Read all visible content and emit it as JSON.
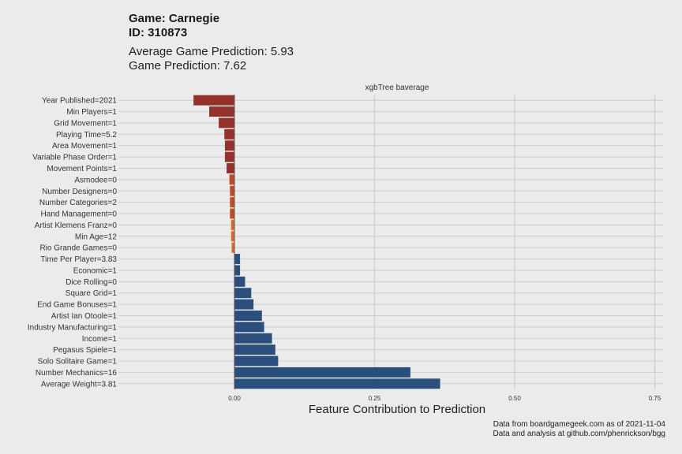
{
  "header": {
    "game_line": "Game: Carnegie",
    "id_line": "ID: 310873",
    "avg_prediction_line": "Average Game Prediction: 5.93",
    "prediction_line": "Game Prediction: 7.62"
  },
  "caption": {
    "line1": "Data from boardgamegeek.com as of 2021-11-04",
    "line2": "Data and analysis at github.com/phenrickson/bgg"
  },
  "chart_data": {
    "type": "bar",
    "orientation": "horizontal",
    "facet_label": "xgbTree baverage",
    "xlabel": "Feature Contribution to Prediction",
    "ylabel": "",
    "xlim": [
      -0.1,
      0.75
    ],
    "xticks": [
      0.0,
      0.25,
      0.5,
      0.75
    ],
    "xtick_labels": [
      "0.00",
      "0.25",
      "0.50",
      "0.75"
    ],
    "grid": true,
    "categories": [
      "Year Published=2021",
      "Min Players=1",
      "Grid Movement=1",
      "Playing Time=5.2",
      "Area Movement=1",
      "Variable Phase Order=1",
      "Movement Points=1",
      "Asmodee=0",
      "Number Designers=0",
      "Number Categories=2",
      "Hand Management=0",
      "Artist Klemens Franz=0",
      "Min Age=12",
      "Rio Grande Games=0",
      "Time Per Player=3.83",
      "Economic=1",
      "Dice Rolling=0",
      "Square Grid=1",
      "End Game Bonuses=1",
      "Artist Ian Otoole=1",
      "Industry Manufacturing=1",
      "Income=1",
      "Pegasus Spiele=1",
      "Solo Solitaire Game=1",
      "Number Mechanics=16",
      "Average Weight=3.81"
    ],
    "values": [
      -0.073,
      -0.045,
      -0.028,
      -0.018,
      -0.017,
      -0.017,
      -0.014,
      -0.009,
      -0.008,
      -0.008,
      -0.008,
      -0.006,
      -0.006,
      -0.005,
      0.01,
      0.01,
      0.019,
      0.03,
      0.034,
      0.049,
      0.053,
      0.067,
      0.073,
      0.078,
      0.314,
      0.367
    ],
    "colors": {
      "negative_strong": "#93312a",
      "negative_mid": "#bf4a26",
      "negative_weak": "#dc6a2a",
      "positive": "#2b4f7d"
    }
  }
}
